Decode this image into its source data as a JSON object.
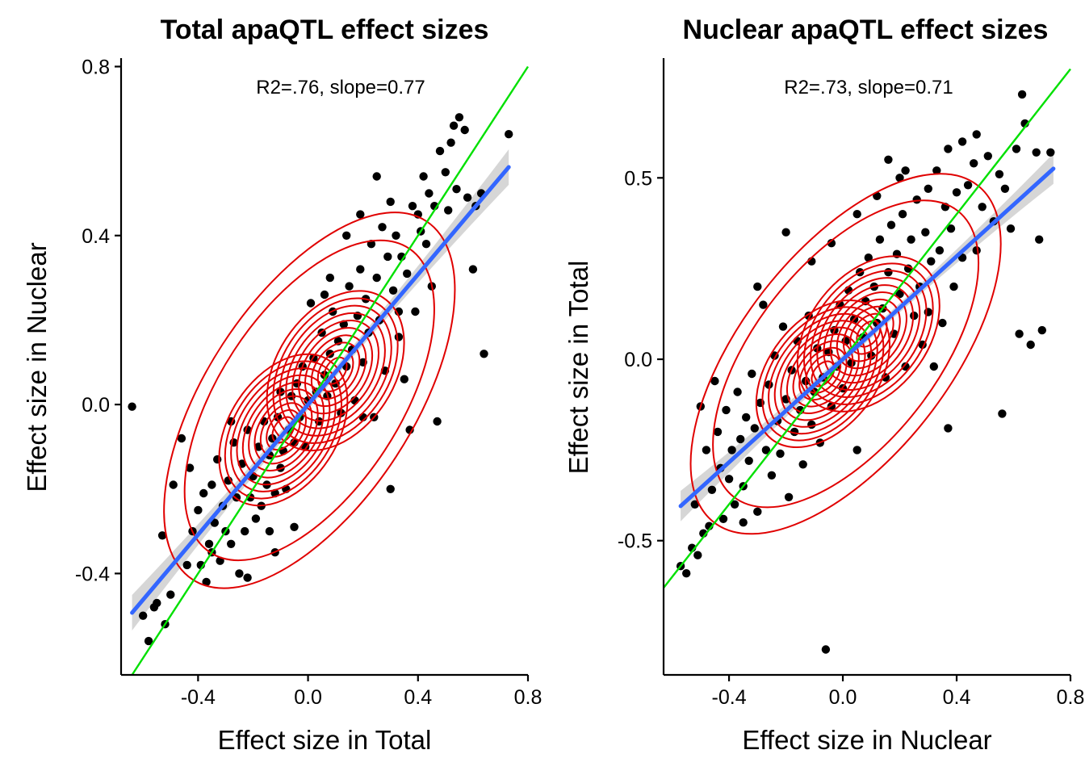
{
  "figure": {
    "colors": {
      "points": "#000000",
      "contours": "#e00000",
      "regression": "#3366ff",
      "confidence_band": "#c8c8c8",
      "identity_line": "#00e000"
    }
  },
  "chart_data": [
    {
      "type": "scatter",
      "title": "Total apaQTL effect sizes",
      "xlabel": "Effect size in Total",
      "ylabel": "Effect size in Nuclear",
      "annotation": "R2=.76, slope=0.77",
      "xlim": [
        -0.68,
        0.8
      ],
      "ylim": [
        -0.64,
        0.82
      ],
      "x_ticks": [
        -0.4,
        0.0,
        0.4,
        0.8
      ],
      "x_tick_labels": [
        "-0.4",
        "0.0",
        "0.4",
        "0.8"
      ],
      "y_ticks": [
        -0.4,
        0.0,
        0.4,
        0.8
      ],
      "y_tick_labels": [
        "-0.4",
        "0.0",
        "0.4",
        "0.8"
      ],
      "grid": false,
      "legend": "none",
      "regression": {
        "slope": 0.77,
        "intercept": 0.0,
        "r2": 0.76,
        "x_range": [
          -0.64,
          0.73
        ]
      },
      "identity_line": {
        "slope": 1,
        "intercept": 0
      },
      "contour_centers": [
        {
          "x": -0.09,
          "y": -0.06
        },
        {
          "x": 0.1,
          "y": 0.08
        }
      ],
      "points": [
        [
          -0.64,
          -0.005
        ],
        [
          -0.6,
          -0.5
        ],
        [
          -0.58,
          -0.56
        ],
        [
          -0.56,
          -0.48
        ],
        [
          -0.55,
          -0.47
        ],
        [
          -0.53,
          -0.31
        ],
        [
          -0.52,
          -0.52
        ],
        [
          -0.5,
          -0.45
        ],
        [
          -0.49,
          -0.19
        ],
        [
          -0.46,
          -0.08
        ],
        [
          -0.44,
          -0.38
        ],
        [
          -0.43,
          -0.15
        ],
        [
          -0.42,
          -0.3
        ],
        [
          -0.4,
          -0.25
        ],
        [
          -0.39,
          -0.38
        ],
        [
          -0.38,
          -0.21
        ],
        [
          -0.37,
          -0.42
        ],
        [
          -0.36,
          -0.33
        ],
        [
          -0.35,
          -0.19
        ],
        [
          -0.34,
          -0.28
        ],
        [
          -0.33,
          -0.13
        ],
        [
          -0.32,
          -0.37
        ],
        [
          -0.31,
          -0.24
        ],
        [
          -0.3,
          -0.3
        ],
        [
          -0.29,
          -0.18
        ],
        [
          -0.28,
          -0.33
        ],
        [
          -0.27,
          -0.09
        ],
        [
          -0.26,
          -0.22
        ],
        [
          -0.25,
          -0.4
        ],
        [
          -0.24,
          -0.14
        ],
        [
          -0.23,
          -0.3
        ],
        [
          -0.22,
          -0.41
        ],
        [
          -0.22,
          -0.06
        ],
        [
          -0.21,
          -0.22
        ],
        [
          -0.2,
          -0.17
        ],
        [
          -0.19,
          -0.27
        ],
        [
          -0.18,
          -0.1
        ],
        [
          -0.17,
          -0.24
        ],
        [
          -0.16,
          -0.04
        ],
        [
          -0.15,
          -0.19
        ],
        [
          -0.14,
          -0.3
        ],
        [
          -0.14,
          -0.12
        ],
        [
          -0.13,
          -0.08
        ],
        [
          -0.12,
          -0.21
        ],
        [
          -0.11,
          -0.03
        ],
        [
          -0.1,
          -0.15
        ],
        [
          -0.1,
          0.03
        ],
        [
          -0.09,
          -0.11
        ],
        [
          -0.08,
          -0.2
        ],
        [
          -0.07,
          -0.06
        ],
        [
          -0.06,
          0.02
        ],
        [
          -0.05,
          -0.09
        ],
        [
          -0.05,
          -0.29
        ],
        [
          -0.04,
          0.05
        ],
        [
          -0.03,
          -0.03
        ],
        [
          -0.02,
          0.09
        ],
        [
          -0.01,
          -0.1
        ],
        [
          0.0,
          0.01
        ],
        [
          0.01,
          0.24
        ],
        [
          0.02,
          0.11
        ],
        [
          0.03,
          0.03
        ],
        [
          0.04,
          -0.04
        ],
        [
          0.05,
          0.17
        ],
        [
          0.06,
          0.07
        ],
        [
          0.07,
          0.02
        ],
        [
          0.08,
          0.12
        ],
        [
          0.09,
          0.22
        ],
        [
          0.1,
          0.05
        ],
        [
          0.11,
          0.15
        ],
        [
          0.12,
          -0.02
        ],
        [
          0.13,
          0.19
        ],
        [
          0.14,
          0.09
        ],
        [
          0.15,
          0.28
        ],
        [
          0.16,
          0.13
        ],
        [
          0.17,
          0.01
        ],
        [
          0.18,
          0.21
        ],
        [
          0.19,
          0.32
        ],
        [
          0.2,
          0.1
        ],
        [
          0.21,
          0.25
        ],
        [
          0.22,
          0.17
        ],
        [
          0.23,
          0.38
        ],
        [
          0.24,
          -0.03
        ],
        [
          0.25,
          0.3
        ],
        [
          0.26,
          0.2
        ],
        [
          0.27,
          0.42
        ],
        [
          0.28,
          0.08
        ],
        [
          0.29,
          0.35
        ],
        [
          0.3,
          -0.2
        ],
        [
          0.31,
          0.27
        ],
        [
          0.32,
          0.4
        ],
        [
          0.33,
          0.16
        ],
        [
          0.34,
          0.35
        ],
        [
          0.35,
          0.06
        ],
        [
          0.36,
          0.31
        ],
        [
          0.37,
          -0.06
        ],
        [
          0.38,
          0.47
        ],
        [
          0.39,
          0.22
        ],
        [
          0.4,
          0.45
        ],
        [
          0.41,
          0.41
        ],
        [
          0.42,
          0.54
        ],
        [
          0.43,
          0.38
        ],
        [
          0.44,
          0.5
        ],
        [
          0.45,
          0.28
        ],
        [
          0.46,
          0.47
        ],
        [
          0.47,
          -0.04
        ],
        [
          0.48,
          0.6
        ],
        [
          0.5,
          0.55
        ],
        [
          0.51,
          0.46
        ],
        [
          0.52,
          0.62
        ],
        [
          0.53,
          0.66
        ],
        [
          0.54,
          0.51
        ],
        [
          0.55,
          0.68
        ],
        [
          0.57,
          0.65
        ],
        [
          0.58,
          0.49
        ],
        [
          0.6,
          0.32
        ],
        [
          0.61,
          0.47
        ],
        [
          0.63,
          0.5
        ],
        [
          0.64,
          0.12
        ],
        [
          0.73,
          0.64
        ],
        [
          0.25,
          0.54
        ],
        [
          0.19,
          0.45
        ],
        [
          0.14,
          0.4
        ],
        [
          0.3,
          0.48
        ],
        [
          0.06,
          0.26
        ],
        [
          -0.28,
          -0.04
        ],
        [
          -0.35,
          -0.35
        ],
        [
          0.08,
          0.3
        ],
        [
          -0.12,
          -0.35
        ],
        [
          0.33,
          0.22
        ],
        [
          0.2,
          -0.03
        ]
      ]
    },
    {
      "type": "scatter",
      "title": "Nuclear apaQTL effect sizes",
      "xlabel": "Effect size in Nuclear",
      "ylabel": "Effect size in Total",
      "annotation": "R2=.73, slope=0.71",
      "xlim": [
        -0.63,
        0.8
      ],
      "ylim": [
        -0.87,
        0.83
      ],
      "x_ticks": [
        -0.4,
        0.0,
        0.4,
        0.8
      ],
      "x_tick_labels": [
        "-0.4",
        "0.0",
        "0.4",
        "0.8"
      ],
      "y_ticks": [
        -0.5,
        0.0,
        0.5
      ],
      "y_tick_labels": [
        "-0.5",
        "0.0",
        "0.5"
      ],
      "grid": false,
      "legend": "none",
      "regression": {
        "slope": 0.71,
        "intercept": 0.0,
        "r2": 0.73,
        "x_range": [
          -0.57,
          0.74
        ]
      },
      "identity_line": {
        "slope": 1,
        "intercept": 0
      },
      "contour_centers": [
        {
          "x": -0.07,
          "y": -0.04
        },
        {
          "x": 0.09,
          "y": 0.07
        }
      ],
      "points": [
        [
          -0.57,
          -0.57
        ],
        [
          -0.55,
          -0.59
        ],
        [
          -0.53,
          -0.52
        ],
        [
          -0.52,
          -0.4
        ],
        [
          -0.51,
          -0.54
        ],
        [
          -0.5,
          -0.13
        ],
        [
          -0.49,
          -0.48
        ],
        [
          -0.48,
          -0.25
        ],
        [
          -0.47,
          -0.46
        ],
        [
          -0.46,
          -0.36
        ],
        [
          -0.45,
          -0.06
        ],
        [
          -0.44,
          -0.2
        ],
        [
          -0.43,
          -0.3
        ],
        [
          -0.42,
          -0.44
        ],
        [
          -0.41,
          -0.14
        ],
        [
          -0.4,
          -0.33
        ],
        [
          -0.39,
          -0.25
        ],
        [
          -0.38,
          -0.4
        ],
        [
          -0.37,
          -0.09
        ],
        [
          -0.36,
          -0.22
        ],
        [
          -0.35,
          -0.35
        ],
        [
          -0.34,
          -0.16
        ],
        [
          -0.33,
          -0.28
        ],
        [
          -0.32,
          -0.04
        ],
        [
          -0.31,
          -0.19
        ],
        [
          -0.3,
          -0.42
        ],
        [
          -0.29,
          -0.12
        ],
        [
          -0.28,
          0.15
        ],
        [
          -0.27,
          -0.25
        ],
        [
          -0.26,
          -0.07
        ],
        [
          -0.25,
          -0.32
        ],
        [
          -0.24,
          0.01
        ],
        [
          -0.23,
          -0.17
        ],
        [
          -0.22,
          -0.26
        ],
        [
          -0.21,
          0.09
        ],
        [
          -0.2,
          -0.11
        ],
        [
          -0.19,
          -0.38
        ],
        [
          -0.18,
          -0.03
        ],
        [
          -0.17,
          -0.2
        ],
        [
          -0.16,
          0.05
        ],
        [
          -0.15,
          -0.14
        ],
        [
          -0.14,
          -0.29
        ],
        [
          -0.13,
          -0.06
        ],
        [
          -0.12,
          0.12
        ],
        [
          -0.11,
          -0.18
        ],
        [
          -0.1,
          -0.09
        ],
        [
          -0.09,
          0.03
        ],
        [
          -0.08,
          -0.23
        ],
        [
          -0.07,
          -0.05
        ],
        [
          -0.06,
          -0.8
        ],
        [
          -0.05,
          0.02
        ],
        [
          -0.04,
          -0.13
        ],
        [
          -0.03,
          0.08
        ],
        [
          -0.02,
          -0.02
        ],
        [
          -0.01,
          0.15
        ],
        [
          0.0,
          -0.08
        ],
        [
          0.01,
          0.05
        ],
        [
          0.02,
          0.19
        ],
        [
          0.03,
          -0.01
        ],
        [
          0.04,
          0.11
        ],
        [
          0.05,
          -0.25
        ],
        [
          0.06,
          0.24
        ],
        [
          0.07,
          0.06
        ],
        [
          0.08,
          0.16
        ],
        [
          0.09,
          0.28
        ],
        [
          0.1,
          0.01
        ],
        [
          0.11,
          0.2
        ],
        [
          0.12,
          0.1
        ],
        [
          0.13,
          0.33
        ],
        [
          0.14,
          0.14
        ],
        [
          0.15,
          -0.05
        ],
        [
          0.16,
          0.24
        ],
        [
          0.17,
          0.37
        ],
        [
          0.18,
          0.07
        ],
        [
          0.19,
          0.29
        ],
        [
          0.2,
          0.18
        ],
        [
          0.21,
          0.4
        ],
        [
          0.22,
          -0.02
        ],
        [
          0.23,
          0.25
        ],
        [
          0.24,
          0.33
        ],
        [
          0.25,
          0.12
        ],
        [
          0.26,
          0.44
        ],
        [
          0.27,
          0.2
        ],
        [
          0.28,
          0.04
        ],
        [
          0.29,
          0.35
        ],
        [
          0.3,
          0.47
        ],
        [
          0.31,
          0.27
        ],
        [
          0.32,
          -0.02
        ],
        [
          0.33,
          0.52
        ],
        [
          0.34,
          0.3
        ],
        [
          0.35,
          0.1
        ],
        [
          0.36,
          0.42
        ],
        [
          0.37,
          -0.19
        ],
        [
          0.38,
          0.36
        ],
        [
          0.39,
          0.2
        ],
        [
          0.4,
          0.46
        ],
        [
          0.42,
          0.28
        ],
        [
          0.44,
          0.48
        ],
        [
          0.46,
          0.54
        ],
        [
          0.47,
          0.3
        ],
        [
          0.49,
          0.42
        ],
        [
          0.51,
          0.56
        ],
        [
          0.53,
          0.38
        ],
        [
          0.55,
          0.51
        ],
        [
          0.57,
          0.47
        ],
        [
          0.59,
          0.36
        ],
        [
          0.61,
          0.58
        ],
        [
          0.62,
          0.07
        ],
        [
          0.63,
          0.73
        ],
        [
          0.64,
          0.65
        ],
        [
          0.66,
          0.04
        ],
        [
          0.68,
          0.57
        ],
        [
          0.69,
          0.33
        ],
        [
          0.7,
          0.08
        ],
        [
          0.73,
          0.57
        ],
        [
          0.56,
          -0.15
        ],
        [
          0.47,
          0.62
        ],
        [
          0.16,
          0.55
        ],
        [
          0.05,
          0.4
        ],
        [
          -0.04,
          0.32
        ],
        [
          0.22,
          0.52
        ],
        [
          -0.11,
          0.27
        ],
        [
          0.37,
          0.58
        ],
        [
          -0.2,
          0.35
        ],
        [
          0.12,
          0.45
        ],
        [
          -0.3,
          0.2
        ],
        [
          0.3,
          0.13
        ],
        [
          0.2,
          0.5
        ],
        [
          -0.35,
          -0.45
        ],
        [
          0.42,
          0.6
        ]
      ]
    }
  ]
}
